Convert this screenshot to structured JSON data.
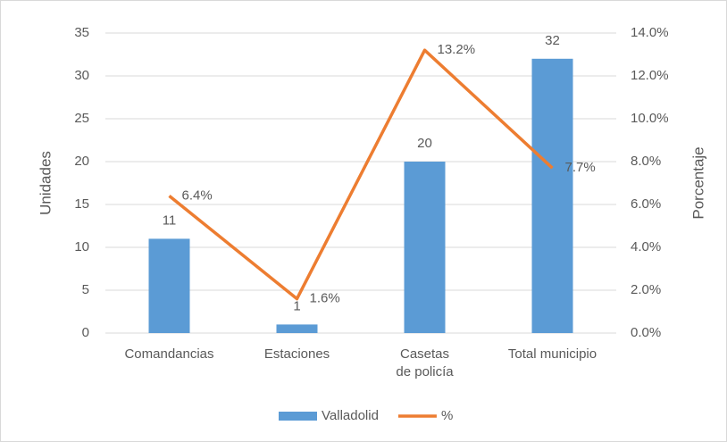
{
  "chart_data": {
    "type": "bar-line",
    "categories": [
      "Comandancias",
      "Estaciones",
      "Casetas\nde policía",
      "Total municipio"
    ],
    "series": [
      {
        "name": "Valladolid",
        "type": "bar",
        "color": "#5b9bd5",
        "values": [
          11,
          1,
          20,
          32
        ]
      },
      {
        "name": "%",
        "type": "line",
        "axis": "y2",
        "color": "#ed7d31",
        "values": [
          6.4,
          1.6,
          13.2,
          7.7
        ],
        "value_labels": [
          "6.4%",
          "1.6%",
          "13.2%",
          "7.7%"
        ]
      }
    ],
    "ylabel": "Unidades",
    "y2label": "Porcentaje",
    "ylim": [
      0,
      35
    ],
    "yticks": [
      0,
      5,
      10,
      15,
      20,
      25,
      30,
      35
    ],
    "y2lim": [
      0,
      14
    ],
    "y2ticks": [
      {
        "value": 0,
        "label": "0.0%"
      },
      {
        "value": 2,
        "label": "2.0%"
      },
      {
        "value": 4,
        "label": "4.0%"
      },
      {
        "value": 6,
        "label": "6.0%"
      },
      {
        "value": 8,
        "label": "8.0%"
      },
      {
        "value": 10,
        "label": "10.0%"
      },
      {
        "value": 12,
        "label": "12.0%"
      },
      {
        "value": 14,
        "label": "14.0%"
      }
    ],
    "grid": true,
    "legend": "bottom"
  }
}
